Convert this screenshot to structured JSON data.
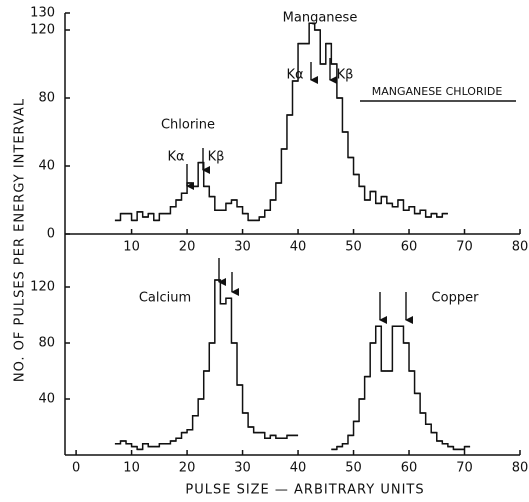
{
  "y_label": "NO. OF PULSES PER ENERGY INTERVAL",
  "x_label": "PULSE SIZE — ARBITRARY UNITS",
  "chart_data": [
    {
      "type": "histogram",
      "annotations": [
        "Manganese",
        "MANGANESE CHLORIDE",
        "Chlorine",
        "Kα",
        "Kβ",
        "Kα",
        "Kβ"
      ],
      "xlim": [
        -2,
        80
      ],
      "ylim": [
        0,
        130
      ],
      "xticks": [
        10,
        20,
        30,
        40,
        50,
        60,
        70,
        80
      ],
      "yticks": [
        0,
        40,
        80,
        120,
        130
      ],
      "series": [
        {
          "color": "#111111",
          "bins": [
            7,
            8,
            9,
            10,
            11,
            12,
            13,
            14,
            15,
            16,
            17,
            18,
            19,
            20,
            21,
            22,
            23,
            24,
            25,
            26,
            27,
            28,
            29,
            30,
            31,
            32,
            33,
            34,
            35,
            36,
            37,
            38,
            39,
            40,
            41,
            42,
            43,
            44,
            45,
            46,
            47,
            48,
            49,
            50,
            51,
            52,
            53,
            54,
            55,
            56,
            57,
            58,
            59,
            60,
            61,
            62,
            63,
            64,
            65,
            66,
            67
          ],
          "values": [
            8,
            12,
            12,
            8,
            13,
            10,
            12,
            8,
            12,
            12,
            16,
            20,
            24,
            30,
            28,
            42,
            28,
            22,
            14,
            14,
            18,
            20,
            16,
            12,
            8,
            8,
            10,
            14,
            20,
            30,
            50,
            70,
            90,
            112,
            112,
            124,
            120,
            100,
            112,
            100,
            80,
            60,
            45,
            35,
            28,
            20,
            25,
            18,
            22,
            18,
            16,
            20,
            14,
            16,
            12,
            14,
            10,
            12,
            10,
            12
          ]
        }
      ]
    },
    {
      "type": "histogram",
      "annotations": [
        "Calcium",
        "Copper"
      ],
      "xlim": [
        -2,
        80
      ],
      "ylim": [
        0,
        145
      ],
      "xticks": [
        0,
        10,
        20,
        30,
        40,
        50,
        60,
        70,
        80
      ],
      "yticks": [
        40,
        80,
        120
      ],
      "series": [
        {
          "color": "#111111",
          "bins": [
            7,
            8,
            9,
            10,
            11,
            12,
            13,
            14,
            15,
            16,
            17,
            18,
            19,
            20,
            21,
            22,
            23,
            24,
            25,
            26,
            27,
            28,
            29,
            30,
            31,
            32,
            33,
            34,
            35,
            36,
            37,
            38,
            39,
            40
          ],
          "values": [
            8,
            10,
            8,
            6,
            4,
            8,
            6,
            6,
            8,
            8,
            10,
            12,
            16,
            18,
            28,
            40,
            60,
            80,
            125,
            108,
            112,
            80,
            50,
            30,
            20,
            16,
            16,
            12,
            14,
            12,
            12,
            14,
            14
          ]
        },
        {
          "color": "#111111",
          "bins": [
            46,
            47,
            48,
            49,
            50,
            51,
            52,
            53,
            54,
            55,
            56,
            57,
            58,
            59,
            60,
            61,
            62,
            63,
            64,
            65,
            66,
            67,
            68,
            69,
            70,
            71
          ],
          "values": [
            4,
            6,
            8,
            14,
            24,
            40,
            56,
            80,
            92,
            60,
            60,
            92,
            92,
            80,
            60,
            44,
            30,
            22,
            16,
            10,
            8,
            6,
            4,
            4,
            6
          ]
        }
      ]
    }
  ]
}
